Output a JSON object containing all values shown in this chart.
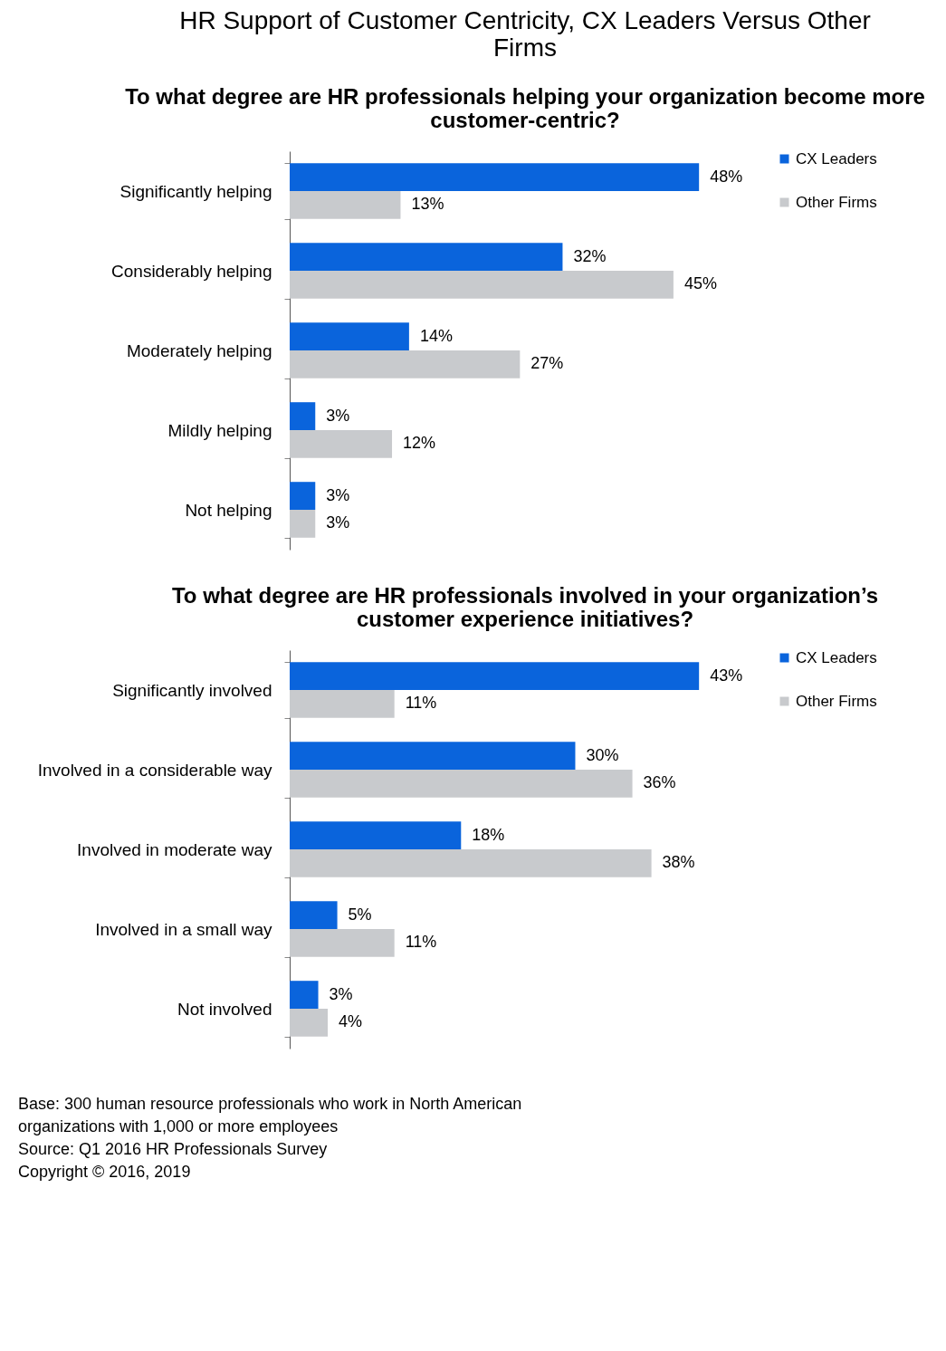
{
  "chart_data": [
    {
      "type": "bar",
      "orientation": "horizontal",
      "title": "HR Support of Customer Centricity, CX Leaders Versus Other Firms",
      "subtitle": "To what degree are HR professionals helping your organization become more customer-centric?",
      "categories": [
        "Significantly helping",
        "Considerably helping",
        "Moderately helping",
        "Mildly helping",
        "Not helping"
      ],
      "series": [
        {
          "name": "CX Leaders",
          "color": "#0a64dc",
          "values": [
            48,
            32,
            14,
            3,
            3
          ],
          "value_labels": [
            "48%",
            "32%",
            "14%",
            "3%",
            "3%"
          ]
        },
        {
          "name": "Other Firms",
          "color": "#c8cacd",
          "values": [
            13,
            45,
            27,
            12,
            3
          ],
          "value_labels": [
            "13%",
            "45%",
            "27%",
            "12%",
            "3%"
          ]
        }
      ],
      "legend": "right",
      "grid": false
    },
    {
      "type": "bar",
      "orientation": "horizontal",
      "title": "To what degree are HR professionals involved in your organization’s customer experience initiatives?",
      "categories": [
        "Significantly involved",
        "Involved in a considerable way",
        "Involved in moderate way",
        "Involved in a small way",
        "Not involved"
      ],
      "series": [
        {
          "name": "CX Leaders",
          "color": "#0a64dc",
          "values": [
            43,
            30,
            18,
            5,
            3
          ],
          "value_labels": [
            "43%",
            "30%",
            "18%",
            "5%",
            "3%"
          ]
        },
        {
          "name": "Other Firms",
          "color": "#c8cacd",
          "values": [
            11,
            36,
            38,
            11,
            4
          ],
          "value_labels": [
            "11%",
            "36%",
            "38%",
            "11%",
            "4%"
          ]
        }
      ],
      "legend": "right",
      "grid": false,
      "annotations": [
        "Base:   300 human resource professionals who work in North American organizations with 1,000 or more employees",
        "Source:   Q1 2016 HR Professionals Survey",
        "Copyright © 2016, 2019"
      ]
    }
  ]
}
